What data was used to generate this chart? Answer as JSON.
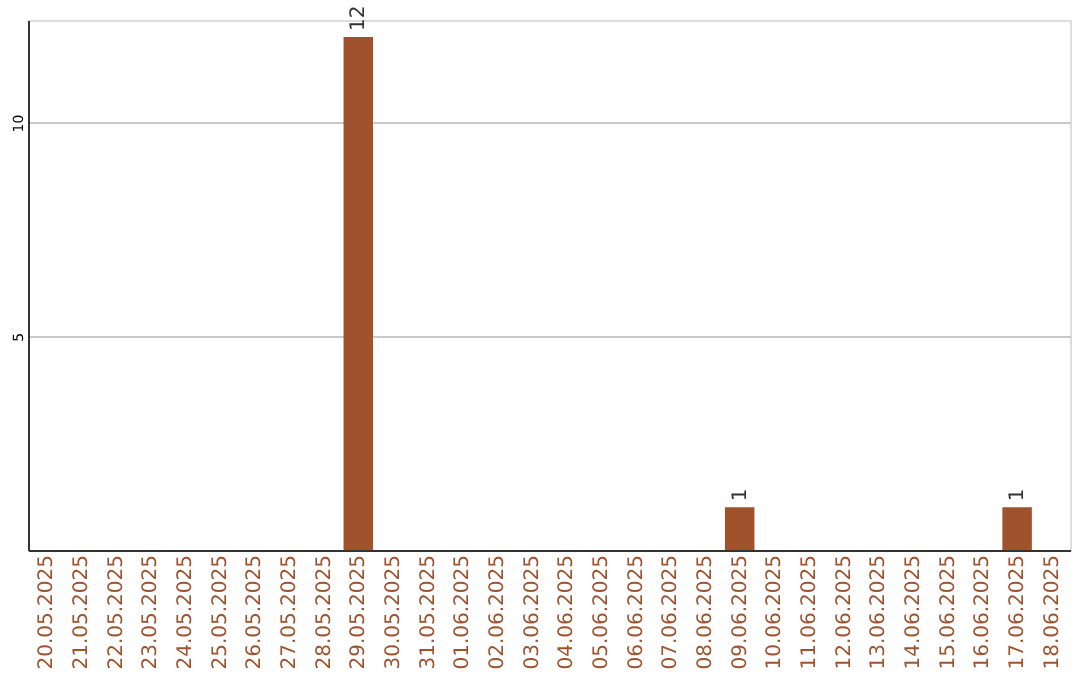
{
  "chart_data": {
    "type": "bar",
    "categories": [
      "20.05.2025",
      "21.05.2025",
      "22.05.2025",
      "23.05.2025",
      "24.05.2025",
      "25.05.2025",
      "26.05.2025",
      "27.05.2025",
      "28.05.2025",
      "29.05.2025",
      "30.05.2025",
      "31.05.2025",
      "01.06.2025",
      "02.06.2025",
      "03.06.2025",
      "04.06.2025",
      "05.06.2025",
      "06.06.2025",
      "07.06.2025",
      "08.06.2025",
      "09.06.2025",
      "10.06.2025",
      "11.06.2025",
      "12.06.2025",
      "13.06.2025",
      "14.06.2025",
      "15.06.2025",
      "16.06.2025",
      "17.06.2025",
      "18.06.2025"
    ],
    "values": [
      0,
      0,
      0,
      0,
      0,
      0,
      0,
      0,
      0,
      12,
      0,
      0,
      0,
      0,
      0,
      0,
      0,
      0,
      0,
      0,
      1,
      0,
      0,
      0,
      0,
      0,
      0,
      0,
      1,
      0
    ],
    "value_labels": [
      null,
      null,
      null,
      null,
      null,
      null,
      null,
      null,
      null,
      "12",
      null,
      null,
      null,
      null,
      null,
      null,
      null,
      null,
      null,
      null,
      "1",
      null,
      null,
      null,
      null,
      null,
      null,
      null,
      "1",
      null
    ],
    "color": "#a0522d",
    "ylim": [
      0,
      12.4
    ],
    "yticks": [
      5,
      10
    ],
    "grid": "y"
  }
}
